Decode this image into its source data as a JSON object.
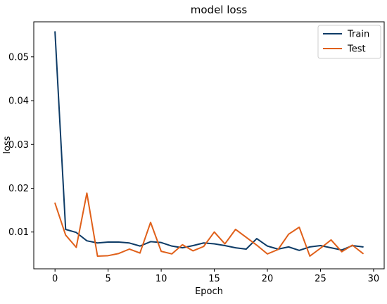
{
  "chart_data": {
    "type": "line",
    "title": "model loss",
    "xlabel": "Epoch",
    "ylabel": "loss",
    "xlim": [
      -2,
      31
    ],
    "ylim": [
      0.0016,
      0.058
    ],
    "xticks": [
      0,
      5,
      10,
      15,
      20,
      25,
      30
    ],
    "yticks": [
      0.01,
      0.02,
      0.03,
      0.04,
      0.05
    ],
    "ytick_labels": [
      "0.01",
      "0.02",
      "0.03",
      "0.04",
      "0.05"
    ],
    "xtick_labels": [
      "0",
      "5",
      "10",
      "15",
      "20",
      "25",
      "30"
    ],
    "grid": false,
    "legend_position": "top-right",
    "x": [
      0,
      1,
      2,
      3,
      4,
      5,
      6,
      7,
      8,
      9,
      10,
      11,
      12,
      13,
      14,
      15,
      16,
      17,
      18,
      19,
      20,
      21,
      22,
      23,
      24,
      25,
      26,
      27,
      28,
      29
    ],
    "series": [
      {
        "name": "Train",
        "color": "#0d3b66",
        "values": [
          0.0557,
          0.0106,
          0.0099,
          0.008,
          0.0075,
          0.0077,
          0.0077,
          0.0075,
          0.0068,
          0.0078,
          0.0076,
          0.0068,
          0.0064,
          0.0069,
          0.0075,
          0.0073,
          0.0069,
          0.0064,
          0.0061,
          0.0085,
          0.0068,
          0.0061,
          0.0066,
          0.0058,
          0.0066,
          0.0069,
          0.0064,
          0.0059,
          0.0069,
          0.0066
        ]
      },
      {
        "name": "Test",
        "color": "#e0601a",
        "values": [
          0.0166,
          0.0093,
          0.0065,
          0.0189,
          0.0045,
          0.0046,
          0.0051,
          0.0061,
          0.0052,
          0.0122,
          0.0056,
          0.005,
          0.0071,
          0.0057,
          0.0067,
          0.01,
          0.0073,
          0.0106,
          0.0088,
          0.007,
          0.005,
          0.006,
          0.0095,
          0.0111,
          0.0045,
          0.0063,
          0.0082,
          0.0055,
          0.007,
          0.0051
        ]
      }
    ]
  }
}
